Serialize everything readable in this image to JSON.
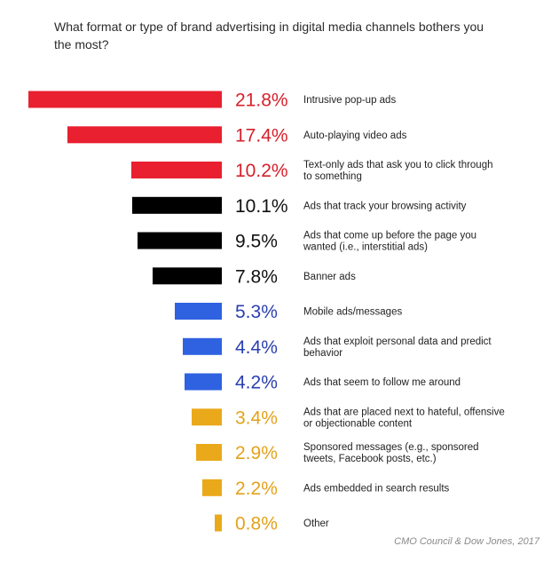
{
  "chart_data": {
    "type": "bar",
    "orientation": "horizontal",
    "title": "What format or type of brand advertising in digital media channels bothers you the most?",
    "value_suffix": "%",
    "source": "CMO Council & Dow Jones, 2017",
    "categories": [
      [
        "Intrusive pop-up ads"
      ],
      [
        "Auto-playing video ads"
      ],
      [
        "Text-only ads that ask you to click through",
        "to something"
      ],
      [
        "Ads that track your browsing activity"
      ],
      [
        "Ads that come up before the page you",
        "wanted (i.e., interstitial ads)"
      ],
      [
        "Banner ads"
      ],
      [
        "Mobile ads/messages"
      ],
      [
        "Ads that exploit personal data and predict",
        "behavior"
      ],
      [
        "Ads that seem to follow me around"
      ],
      [
        "Ads that are placed next to hateful, offensive",
        "or objectionable content"
      ],
      [
        "Sponsored messages (e.g., sponsored",
        "tweets, Facebook posts, etc.)"
      ],
      [
        "Ads embedded in search results"
      ],
      [
        "Other"
      ]
    ],
    "values": [
      21.8,
      17.4,
      10.2,
      10.1,
      9.5,
      7.8,
      5.3,
      4.4,
      4.2,
      3.4,
      2.9,
      2.2,
      0.8
    ],
    "value_labels": [
      "21.8%",
      "17.4%",
      "10.2%",
      "10.1%",
      "9.5%",
      "7.8%",
      "5.3%",
      "4.4%",
      "4.2%",
      "3.4%",
      "2.9%",
      "2.2%",
      "0.8%"
    ],
    "colors": [
      "#e8202f",
      "#e8202f",
      "#e8202f",
      "#000000",
      "#000000",
      "#000000",
      "#2f62e0",
      "#2f62e0",
      "#2f62e0",
      "#eaa91a",
      "#eaa91a",
      "#eaa91a",
      "#eaa91a"
    ],
    "label_colors": [
      "#d8202b",
      "#d8202b",
      "#d8202b",
      "#111111",
      "#111111",
      "#111111",
      "#2a3fb0",
      "#2a3fb0",
      "#2a3fb0",
      "#e3a21c",
      "#e3a21c",
      "#e3a21c",
      "#e3a21c"
    ],
    "xlim": [
      0,
      21.8
    ],
    "grid": false,
    "legend": "none"
  }
}
